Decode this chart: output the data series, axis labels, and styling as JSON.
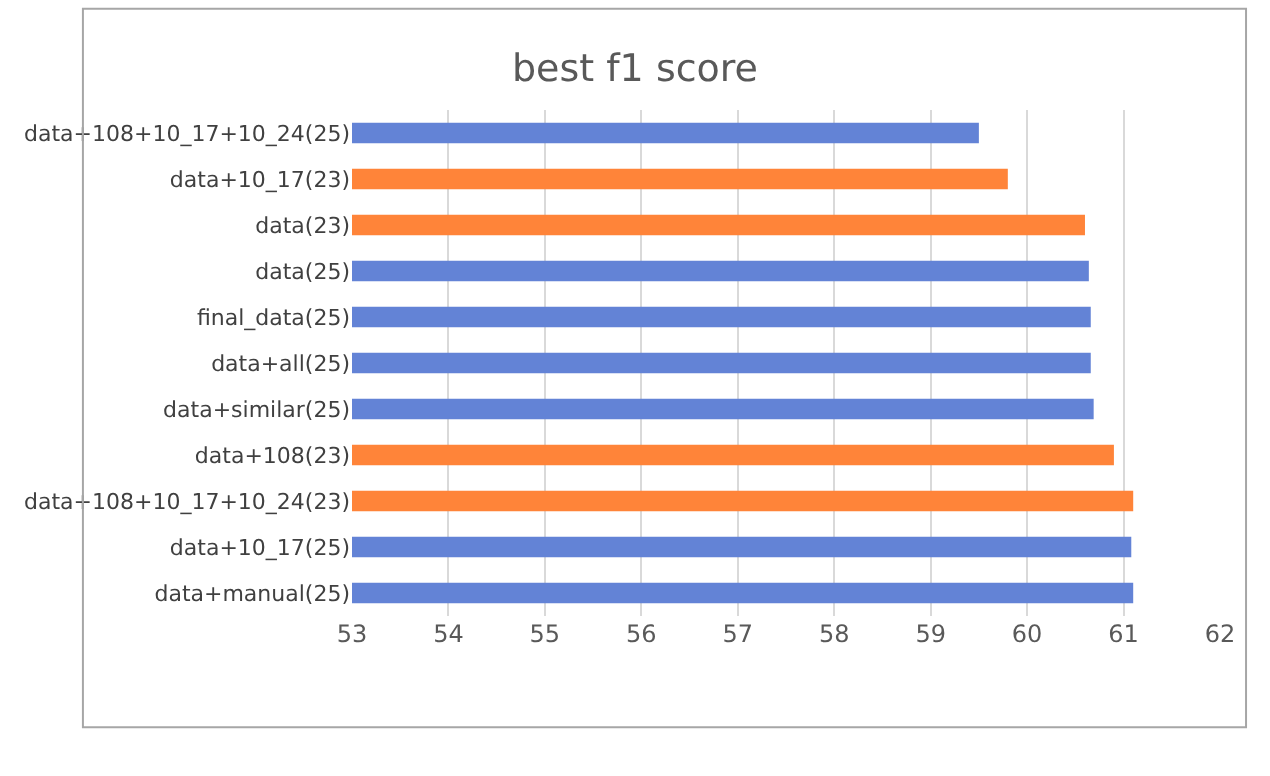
{
  "chart_data": {
    "type": "bar",
    "orientation": "horizontal",
    "title": "best f1 score",
    "categories": [
      "data+108+10_17+10_24(25)",
      "data+10_17(23)",
      "data(23)",
      "data(25)",
      "final_data(25)",
      "data+all(25)",
      "data+similar(25)",
      "data+108(23)",
      "data+108+10_17+10_24(23)",
      "data+10_17(25)",
      "data+manual(25)"
    ],
    "values": [
      59.5,
      59.8,
      60.6,
      60.64,
      60.66,
      60.66,
      60.69,
      60.9,
      61.1,
      61.08,
      61.1
    ],
    "colors": [
      "#6383d6",
      "#ff8439",
      "#ff8439",
      "#6383d6",
      "#6383d6",
      "#6383d6",
      "#6383d6",
      "#ff8439",
      "#ff8439",
      "#6383d6",
      "#6383d6"
    ],
    "xlim": [
      53,
      62
    ],
    "xticks": [
      53,
      54,
      55,
      56,
      57,
      58,
      59,
      60,
      61,
      62
    ],
    "grid": "x",
    "legend": false
  }
}
